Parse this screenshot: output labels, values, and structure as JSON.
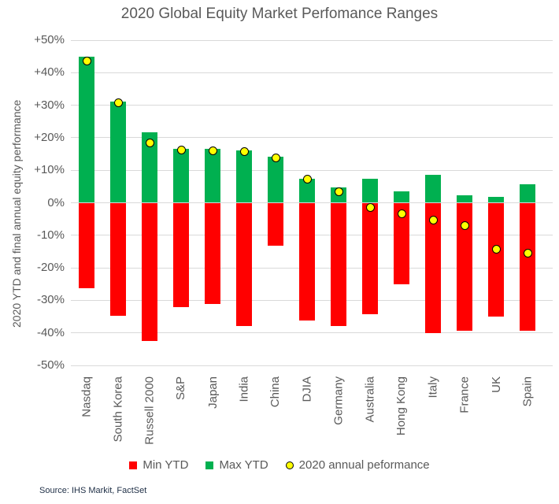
{
  "source_note": "Source: IHS Markit, FactSet",
  "colors": {
    "min_bar": "#ff0000",
    "max_bar": "#00b050",
    "annual_dot_fill": "#ffff00",
    "annual_dot_border": "#000000",
    "gridline": "#d9d9d9",
    "text_gray": "#595959",
    "source_text": "#1f2f46",
    "background": "#ffffff"
  },
  "chart_data": {
    "type": "bar",
    "title": "2020 Global Equity Market Perfomance Ranges",
    "xlabel": "",
    "ylabel": "2020 YTD and final annual equity performance",
    "ylim": [
      -50,
      50
    ],
    "grid": true,
    "legend_position": "bottom",
    "yticks": [
      {
        "value": 50,
        "label": "+50%"
      },
      {
        "value": 40,
        "label": "+40%"
      },
      {
        "value": 30,
        "label": "+30%"
      },
      {
        "value": 20,
        "label": "+20%"
      },
      {
        "value": 10,
        "label": "+10%"
      },
      {
        "value": 0,
        "label": "0%"
      },
      {
        "value": -10,
        "label": "-10%"
      },
      {
        "value": -20,
        "label": "-20%"
      },
      {
        "value": -30,
        "label": "-30%"
      },
      {
        "value": -40,
        "label": "-40%"
      },
      {
        "value": -50,
        "label": "-50%"
      }
    ],
    "categories": [
      "Nasdaq",
      "South Korea",
      "Russell 2000",
      "S&P",
      "Japan",
      "India",
      "China",
      "DJIA",
      "Germany",
      "Australia",
      "Hong Kong",
      "Italy",
      "France",
      "UK",
      "Spain"
    ],
    "series": [
      {
        "name": "Min YTD",
        "kind": "bar",
        "color": "#ff0000",
        "values": [
          -26.3,
          -34.8,
          -42.6,
          -32.2,
          -31.1,
          -37.8,
          -13.3,
          -36.2,
          -37.8,
          -34.2,
          -25.0,
          -40.0,
          -39.4,
          -35.0,
          -39.4
        ]
      },
      {
        "name": "Max YTD",
        "kind": "bar",
        "color": "#00b050",
        "values": [
          44.9,
          31.2,
          21.7,
          16.5,
          16.6,
          16.2,
          14.2,
          7.4,
          4.8,
          7.4,
          3.4,
          8.5,
          2.2,
          1.8,
          5.6
        ]
      },
      {
        "name": "2020 annual peformance",
        "kind": "point",
        "marker": "circle",
        "color": "#ffff00",
        "values": [
          43.6,
          30.8,
          18.4,
          16.3,
          16.0,
          15.8,
          13.9,
          7.2,
          3.5,
          -1.5,
          -3.4,
          -5.4,
          -7.1,
          -14.3,
          -15.5
        ]
      }
    ]
  }
}
